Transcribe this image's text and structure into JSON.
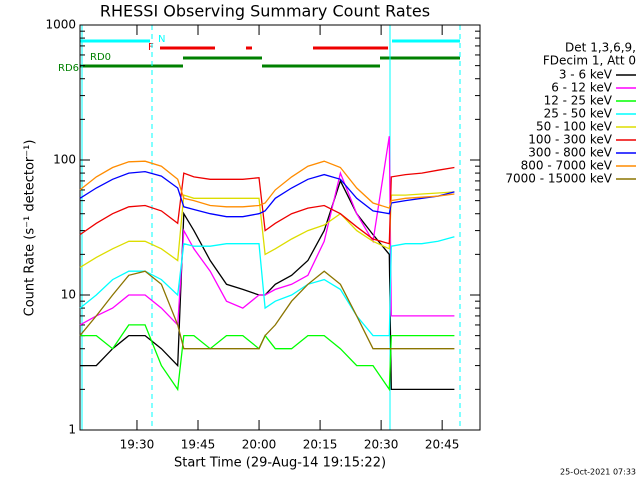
{
  "chart_data": {
    "type": "line",
    "title": "RHESSI Observing Summary Count Rates",
    "xlabel": "Start Time (29-Aug-14 19:15:22)",
    "ylabel": "Count Rate (s⁻¹ detector⁻¹)",
    "footer": "25-Oct-2021 07:33",
    "legend_header": [
      "Det 1,3,6,9,",
      "FDecim 1, Att 0"
    ],
    "flags": [
      "N",
      "F",
      "RD0",
      "RD6"
    ],
    "log_y": true,
    "xlim": [
      16,
      114.3
    ],
    "xticks": [
      {
        "value": 30,
        "label": "19:30"
      },
      {
        "value": 45,
        "label": "19:45"
      },
      {
        "value": 60,
        "label": "20:00"
      },
      {
        "value": 75,
        "label": "20:15"
      },
      {
        "value": 90,
        "label": "20:30"
      },
      {
        "value": 105,
        "label": "20:45"
      }
    ],
    "ylim": [
      1,
      1000
    ],
    "yticks": [
      1,
      10,
      100,
      1000
    ],
    "x": [
      16,
      20,
      24,
      28,
      32,
      36,
      40,
      41.5,
      44,
      48,
      52,
      56,
      60,
      61.5,
      64,
      68,
      72,
      76,
      80,
      84,
      88,
      92,
      92.5,
      96,
      100,
      104,
      108
    ],
    "series": [
      {
        "name": "3 - 6 keV",
        "color": "#000000",
        "values": [
          3,
          3,
          4,
          5,
          5,
          4,
          3,
          40,
          30,
          18,
          12,
          11,
          10,
          10,
          12,
          14,
          18,
          30,
          70,
          40,
          28,
          20,
          2,
          2,
          2,
          2,
          2
        ]
      },
      {
        "name": "6 - 12 keV",
        "color": "#ff00ff",
        "values": [
          6,
          7,
          8,
          10,
          10,
          8,
          6,
          30,
          22,
          15,
          9,
          8,
          10,
          10,
          11,
          12,
          14,
          25,
          80,
          40,
          25,
          150,
          7,
          7,
          7,
          7,
          7
        ]
      },
      {
        "name": "12 - 25 keV",
        "color": "#00ff00",
        "values": [
          5,
          5,
          4,
          6,
          6,
          3,
          2,
          5,
          5,
          4,
          5,
          5,
          4,
          5,
          4,
          4,
          5,
          5,
          4,
          3,
          3,
          2,
          5,
          5,
          5,
          5,
          5
        ]
      },
      {
        "name": "25 - 50 keV",
        "color": "#00ffff",
        "values": [
          8,
          10,
          13,
          15,
          15,
          13,
          10,
          24,
          23,
          23,
          24,
          24,
          24,
          8,
          9,
          10,
          12,
          13,
          11,
          7,
          5,
          5,
          23,
          24,
          24,
          25,
          27
        ]
      },
      {
        "name": "50 - 100 keV",
        "color": "#dddd00",
        "values": [
          16,
          19,
          22,
          25,
          25,
          22,
          18,
          55,
          52,
          52,
          52,
          52,
          52,
          20,
          22,
          26,
          30,
          33,
          40,
          30,
          25,
          22,
          55,
          55,
          56,
          57,
          58
        ]
      },
      {
        "name": "100 - 300 keV",
        "color": "#ee0000",
        "values": [
          28,
          34,
          40,
          45,
          46,
          42,
          34,
          80,
          75,
          72,
          72,
          72,
          74,
          30,
          34,
          40,
          44,
          46,
          40,
          32,
          26,
          24,
          75,
          78,
          80,
          84,
          88
        ]
      },
      {
        "name": "300 - 800 keV",
        "color": "#0000ff",
        "values": [
          52,
          62,
          72,
          80,
          82,
          76,
          62,
          45,
          43,
          40,
          38,
          38,
          40,
          42,
          52,
          62,
          72,
          78,
          72,
          52,
          42,
          40,
          48,
          50,
          52,
          54,
          58
        ]
      },
      {
        "name": "800 - 7000 keV",
        "color": "#ff8c00",
        "values": [
          60,
          75,
          88,
          97,
          98,
          90,
          72,
          52,
          50,
          46,
          45,
          45,
          46,
          48,
          60,
          75,
          90,
          98,
          88,
          62,
          48,
          44,
          50,
          52,
          53,
          54,
          56
        ]
      },
      {
        "name": "7000 - 15000 keV",
        "color": "#8b7500",
        "values": [
          5,
          7,
          10,
          14,
          15,
          12,
          6,
          4,
          4,
          4,
          4,
          4,
          4,
          5,
          6,
          9,
          12,
          15,
          12,
          7,
          4,
          4,
          4,
          4,
          4,
          4,
          4
        ]
      }
    ]
  }
}
